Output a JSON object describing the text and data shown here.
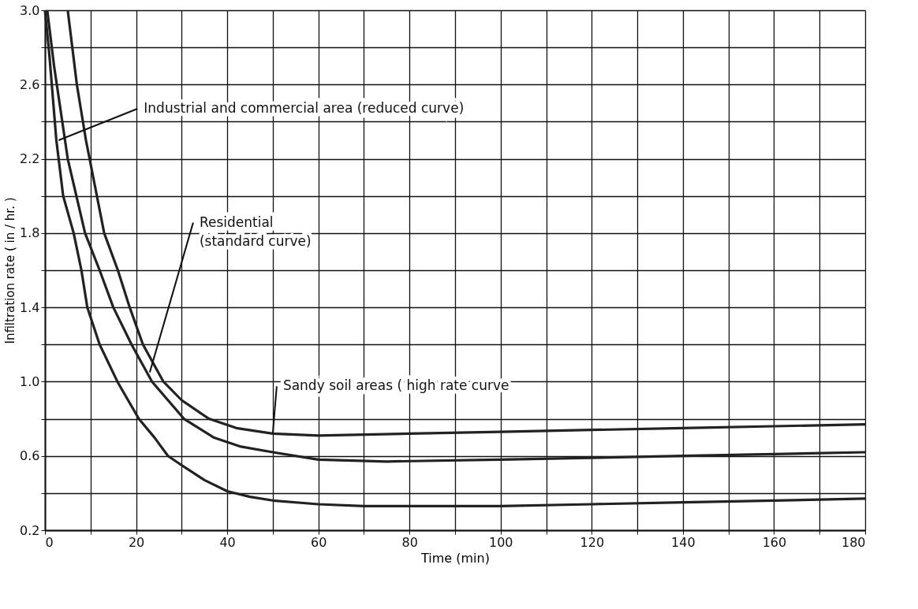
{
  "chart_data": {
    "type": "line",
    "xlabel": "Time (min)",
    "ylabel": "Infiltration rate ( in / hr. )",
    "series": [
      {
        "color": "#222222",
        "x": [
          0,
          1,
          2.5,
          4,
          6.3,
          8,
          9.3,
          12,
          15.9,
          20.6,
          24,
          27,
          30,
          35,
          40,
          45,
          50,
          60,
          70,
          80,
          100,
          120,
          140,
          160,
          180
        ],
        "values": [
          3.0,
          2.75,
          2.3,
          2.0,
          1.8,
          1.6,
          1.4,
          1.2,
          1.0,
          0.8,
          0.7,
          0.6,
          0.55,
          0.47,
          0.41,
          0.38,
          0.36,
          0.34,
          0.33,
          0.33,
          0.33,
          0.34,
          0.35,
          0.36,
          0.37
        ]
      },
      {
        "color": "#222222",
        "x": [
          0.5,
          2,
          5,
          8.8,
          12,
          15,
          19,
          23.5,
          27,
          30.5,
          37,
          43,
          50,
          60,
          75,
          100,
          120,
          140,
          160,
          180
        ],
        "values": [
          3.0,
          2.7,
          2.2,
          1.8,
          1.6,
          1.4,
          1.2,
          1.0,
          0.9,
          0.8,
          0.7,
          0.65,
          0.62,
          0.58,
          0.57,
          0.58,
          0.59,
          0.6,
          0.61,
          0.62
        ]
      },
      {
        "color": "#222222",
        "x": [
          5,
          7,
          9,
          13,
          16,
          18.6,
          21.5,
          26,
          30,
          36,
          42,
          50,
          60,
          80,
          100,
          120,
          140,
          160,
          180
        ],
        "values": [
          3.0,
          2.6,
          2.3,
          1.8,
          1.6,
          1.4,
          1.2,
          1.0,
          0.9,
          0.8,
          0.75,
          0.72,
          0.71,
          0.72,
          0.73,
          0.74,
          0.75,
          0.76,
          0.77
        ]
      }
    ],
    "xlim": [
      0,
      180
    ],
    "ylim": [
      0.2,
      3.0
    ],
    "xticks": [
      0,
      {
        "value": 10,
        "label": null
      },
      20,
      {
        "value": 30,
        "label": null
      },
      40,
      {
        "value": 50,
        "label": null
      },
      60,
      {
        "value": 70,
        "label": null
      },
      80,
      {
        "value": 90,
        "label": null
      },
      100,
      {
        "value": 110,
        "label": null
      },
      120,
      {
        "value": 130,
        "label": null
      },
      140,
      {
        "value": 150,
        "label": null
      },
      160,
      {
        "value": 170,
        "label": null
      },
      180
    ],
    "yticks": [
      0.2,
      {
        "value": 0.4,
        "label": null
      },
      0.6,
      {
        "value": 0.8,
        "label": null
      },
      {
        "value": 1,
        "label": "1.0"
      },
      {
        "value": 1.2,
        "label": null
      },
      1.4,
      {
        "value": 1.6,
        "label": null
      },
      1.8,
      {
        "value": 2,
        "label": null
      },
      2.2,
      {
        "value": 2.4,
        "label": null
      },
      2.6,
      {
        "value": 2.8,
        "label": null
      },
      {
        "value": 3,
        "label": "3.0"
      }
    ],
    "grid": true,
    "legend": false,
    "marker": "none",
    "line_style": "solid",
    "annotations": [
      {
        "text": "Industrial and commercial area (reduced curve)",
        "x": 3,
        "y": 2.3
      },
      {
        "text": "Residential\n(standard curve)",
        "x": 23,
        "y": 1.05
      },
      {
        "text": "Sandy soil areas ( high rate curve",
        "x": 50,
        "y": 0.72
      }
    ]
  }
}
